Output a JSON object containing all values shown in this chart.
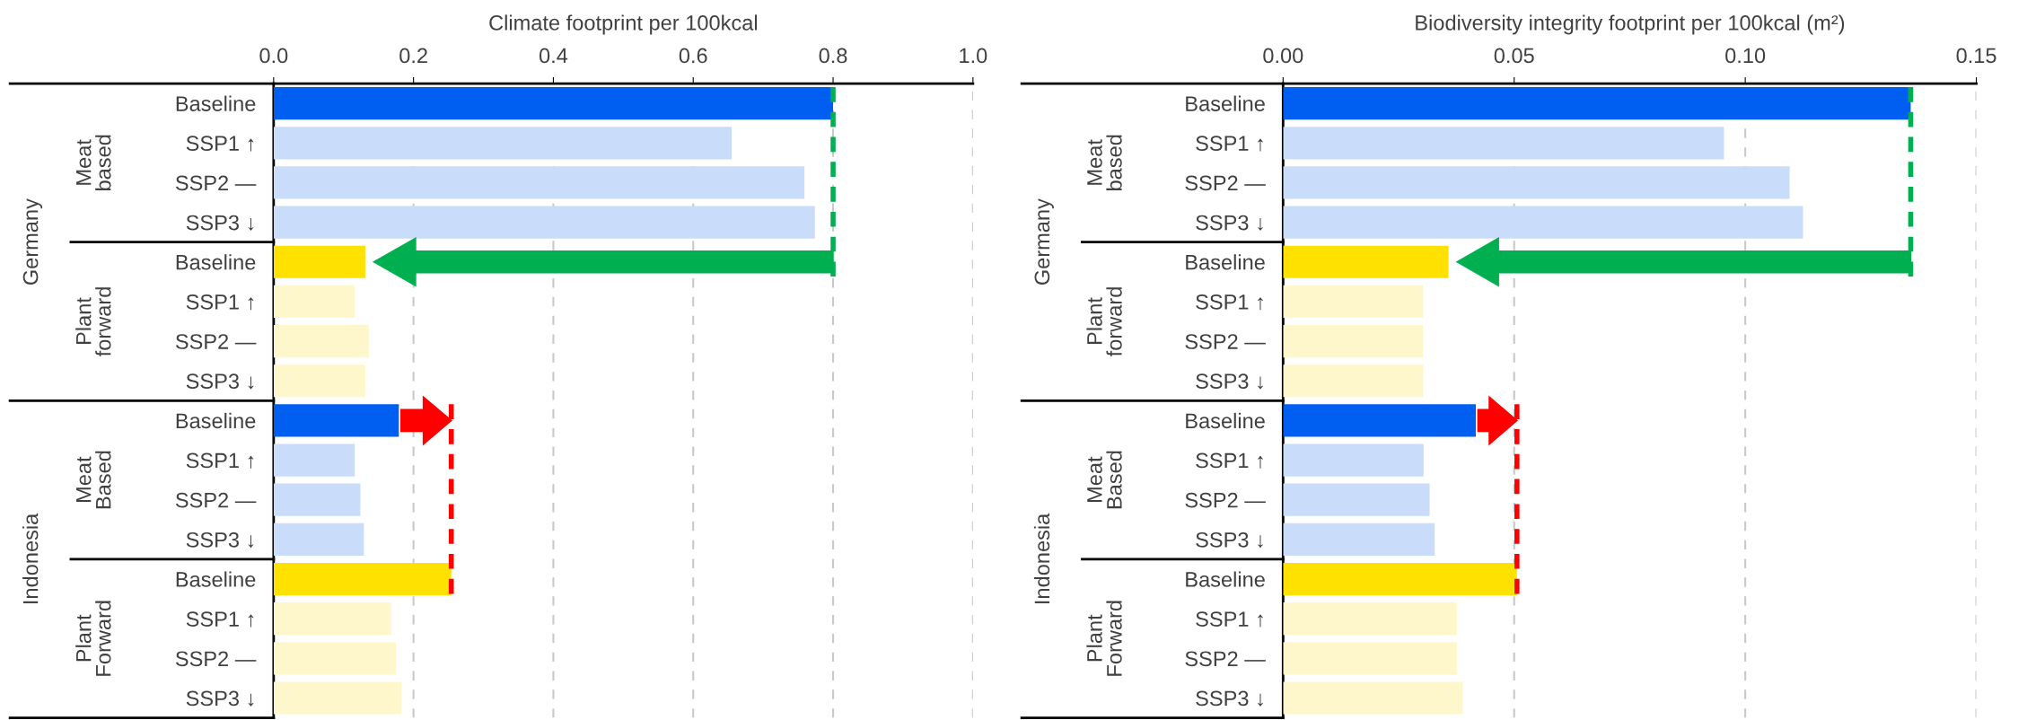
{
  "chart_data": [
    {
      "type": "bar",
      "orientation": "horizontal",
      "xlabel": "Climate footprint per 100kcal",
      "categories": [
        "Baseline",
        "SSP1 ↑",
        "SSP2 —",
        "SSP3 ↓",
        "Baseline",
        "SSP1 ↑",
        "SSP2 —",
        "SSP3 ↓",
        "Baseline",
        "SSP1 ↑",
        "SSP2 —",
        "SSP3 ↓",
        "Baseline",
        "SSP1 ↑",
        "SSP2 —",
        "SSP3 ↓"
      ],
      "values": [
        0.8,
        0.655,
        0.759,
        0.774,
        0.131,
        0.116,
        0.136,
        0.131,
        0.179,
        0.116,
        0.124,
        0.129,
        0.254,
        0.168,
        0.175,
        0.183
      ],
      "colors": [
        "#005ef0",
        "#c9dcfa",
        "#c9dcfa",
        "#c9dcfa",
        "#ffe100",
        "#fff7cc",
        "#fff7cc",
        "#fff7cc",
        "#005ef0",
        "#c9dcfa",
        "#c9dcfa",
        "#c9dcfa",
        "#ffe100",
        "#fff7cc",
        "#fff7cc",
        "#fff7cc"
      ],
      "xlim": [
        0,
        1.0
      ],
      "xticks": [
        {
          "value": 0,
          "label": "0.0"
        },
        0.2,
        0.4,
        0.6,
        0.8,
        {
          "value": 1.0,
          "label": "1.0"
        }
      ],
      "grid": "x",
      "annotations": [
        "Germany",
        "Meat\nbased",
        "Plant\nforward",
        "Indonesia",
        "Meat\nBased",
        "Plant\nForward"
      ]
    },
    {
      "type": "bar",
      "orientation": "horizontal",
      "xlabel": "Biodiversity integrity footprint per 100kcal (m²)",
      "categories": [
        "Baseline",
        "SSP1 ↑",
        "SSP2 —",
        "SSP3 ↓",
        "Baseline",
        "SSP1 ↑",
        "SSP2 —",
        "SSP3 ↓",
        "Baseline",
        "SSP1 ↑",
        "SSP2 —",
        "SSP3 ↓",
        "Baseline",
        "SSP1 ↑",
        "SSP2 —",
        "SSP3 ↓"
      ],
      "values": [
        0.1358,
        0.0954,
        0.1096,
        0.1125,
        0.0358,
        0.0303,
        0.0303,
        0.0303,
        0.0417,
        0.0304,
        0.0317,
        0.0328,
        0.0506,
        0.0376,
        0.0376,
        0.0389
      ],
      "colors": [
        "#005ef0",
        "#c9dcfa",
        "#c9dcfa",
        "#c9dcfa",
        "#ffe100",
        "#fff7cc",
        "#fff7cc",
        "#fff7cc",
        "#005ef0",
        "#c9dcfa",
        "#c9dcfa",
        "#c9dcfa",
        "#ffe100",
        "#fff7cc",
        "#fff7cc",
        "#fff7cc"
      ],
      "xlim": [
        0,
        0.15
      ],
      "xticks": [
        {
          "value": 0,
          "label": "0.00"
        },
        {
          "value": 0.05,
          "label": "0.05"
        },
        {
          "value": 0.1,
          "label": "0.10"
        },
        {
          "value": 0.15,
          "label": "0.15"
        }
      ],
      "grid": "x",
      "annotations": [
        "Germany",
        "Meat\nbased",
        "Plant\nforward",
        "Indonesia",
        "Meat\nBased",
        "Plant\nForward"
      ]
    }
  ]
}
